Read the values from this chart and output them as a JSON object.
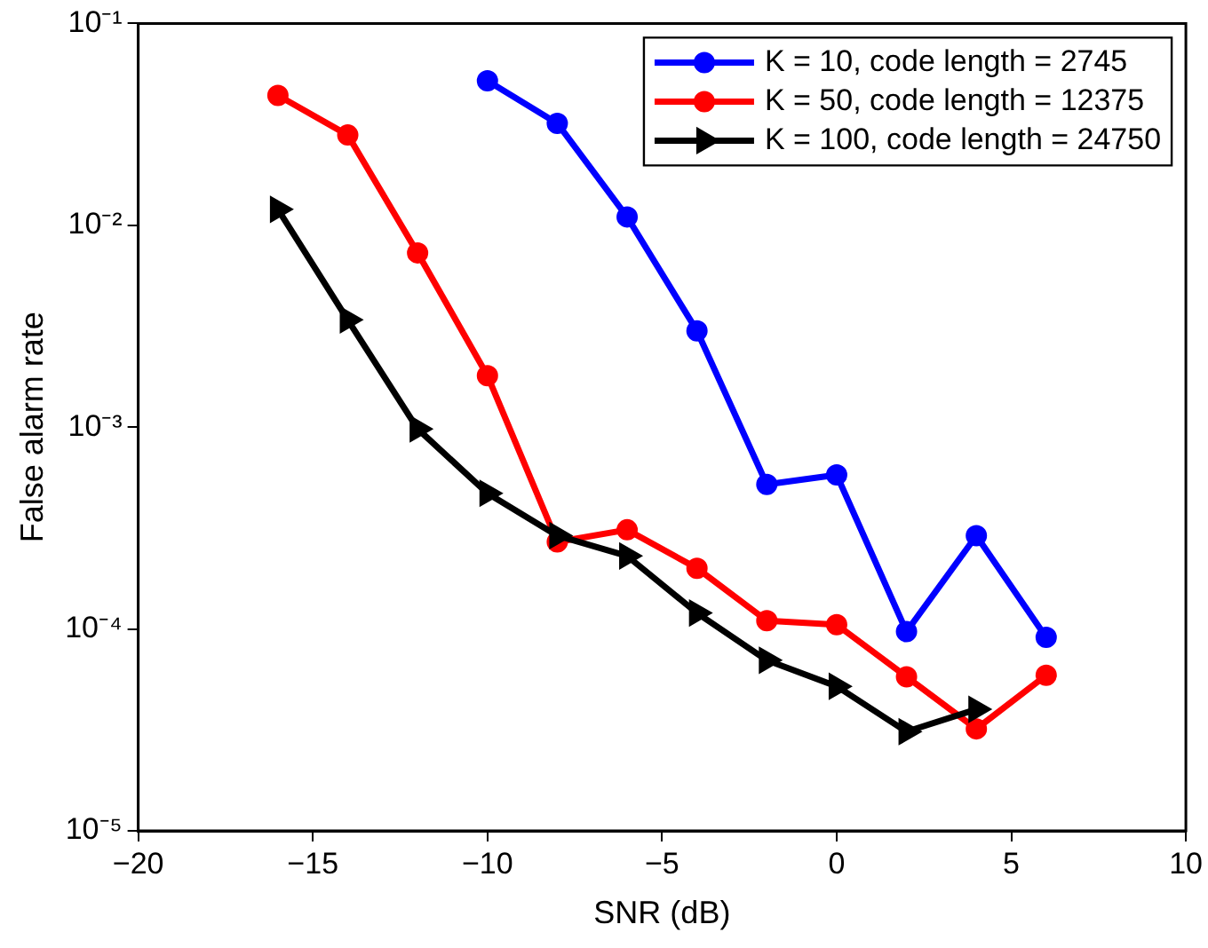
{
  "chart_data": {
    "type": "line",
    "xlabel": "SNR (dB)",
    "ylabel": "False alarm rate",
    "log": "y",
    "grid": false,
    "legend": "top right",
    "line_style": "solid",
    "xlim": [
      -20,
      10
    ],
    "xticks": [
      {
        "value": -20,
        "label": "−20"
      },
      {
        "value": -15,
        "label": "−15"
      },
      {
        "value": -10,
        "label": "−10"
      },
      {
        "value": -5,
        "label": "−5"
      },
      0,
      5,
      10
    ],
    "ylim": [
      1e-05,
      0.1
    ],
    "yticks": [
      {
        "value": 1e-05,
        "label": "10⁻⁵"
      },
      {
        "value": 0.0001,
        "label": "10⁻⁴"
      },
      {
        "value": 0.001,
        "label": "10⁻³"
      },
      {
        "value": 0.01,
        "label": "10⁻²"
      },
      {
        "value": 0.1,
        "label": "10⁻¹"
      }
    ],
    "series": [
      {
        "name": "K = 10, code length = 2745",
        "color": "#0000ff",
        "marker": "circle",
        "x": [
          -10,
          -8,
          -6,
          -4,
          -2,
          0,
          2,
          4,
          6
        ],
        "values": [
          0.052,
          0.032,
          0.011,
          0.003,
          0.00052,
          0.00058,
          9.7e-05,
          0.00029,
          9.1e-05
        ]
      },
      {
        "name": "K = 50, code length = 12375",
        "color": "#ff0000",
        "marker": "circle",
        "x": [
          -16,
          -14,
          -12,
          -10,
          -8,
          -6,
          -4,
          -2,
          0,
          2,
          4,
          6
        ],
        "values": [
          0.044,
          0.028,
          0.0073,
          0.0018,
          0.00027,
          0.00031,
          0.0002,
          0.00011,
          0.000105,
          5.8e-05,
          3.2e-05,
          5.9e-05
        ]
      },
      {
        "name": "K = 100, code length = 24750",
        "color": "#000000",
        "marker": "triangle",
        "x": [
          -16,
          -14,
          -12,
          -10,
          -8,
          -6,
          -4,
          -2,
          0,
          2,
          4
        ],
        "values": [
          0.012,
          0.0034,
          0.00098,
          0.00047,
          0.00029,
          0.00023,
          0.00012,
          7e-05,
          5.2e-05,
          3.1e-05,
          4e-05
        ]
      }
    ]
  }
}
